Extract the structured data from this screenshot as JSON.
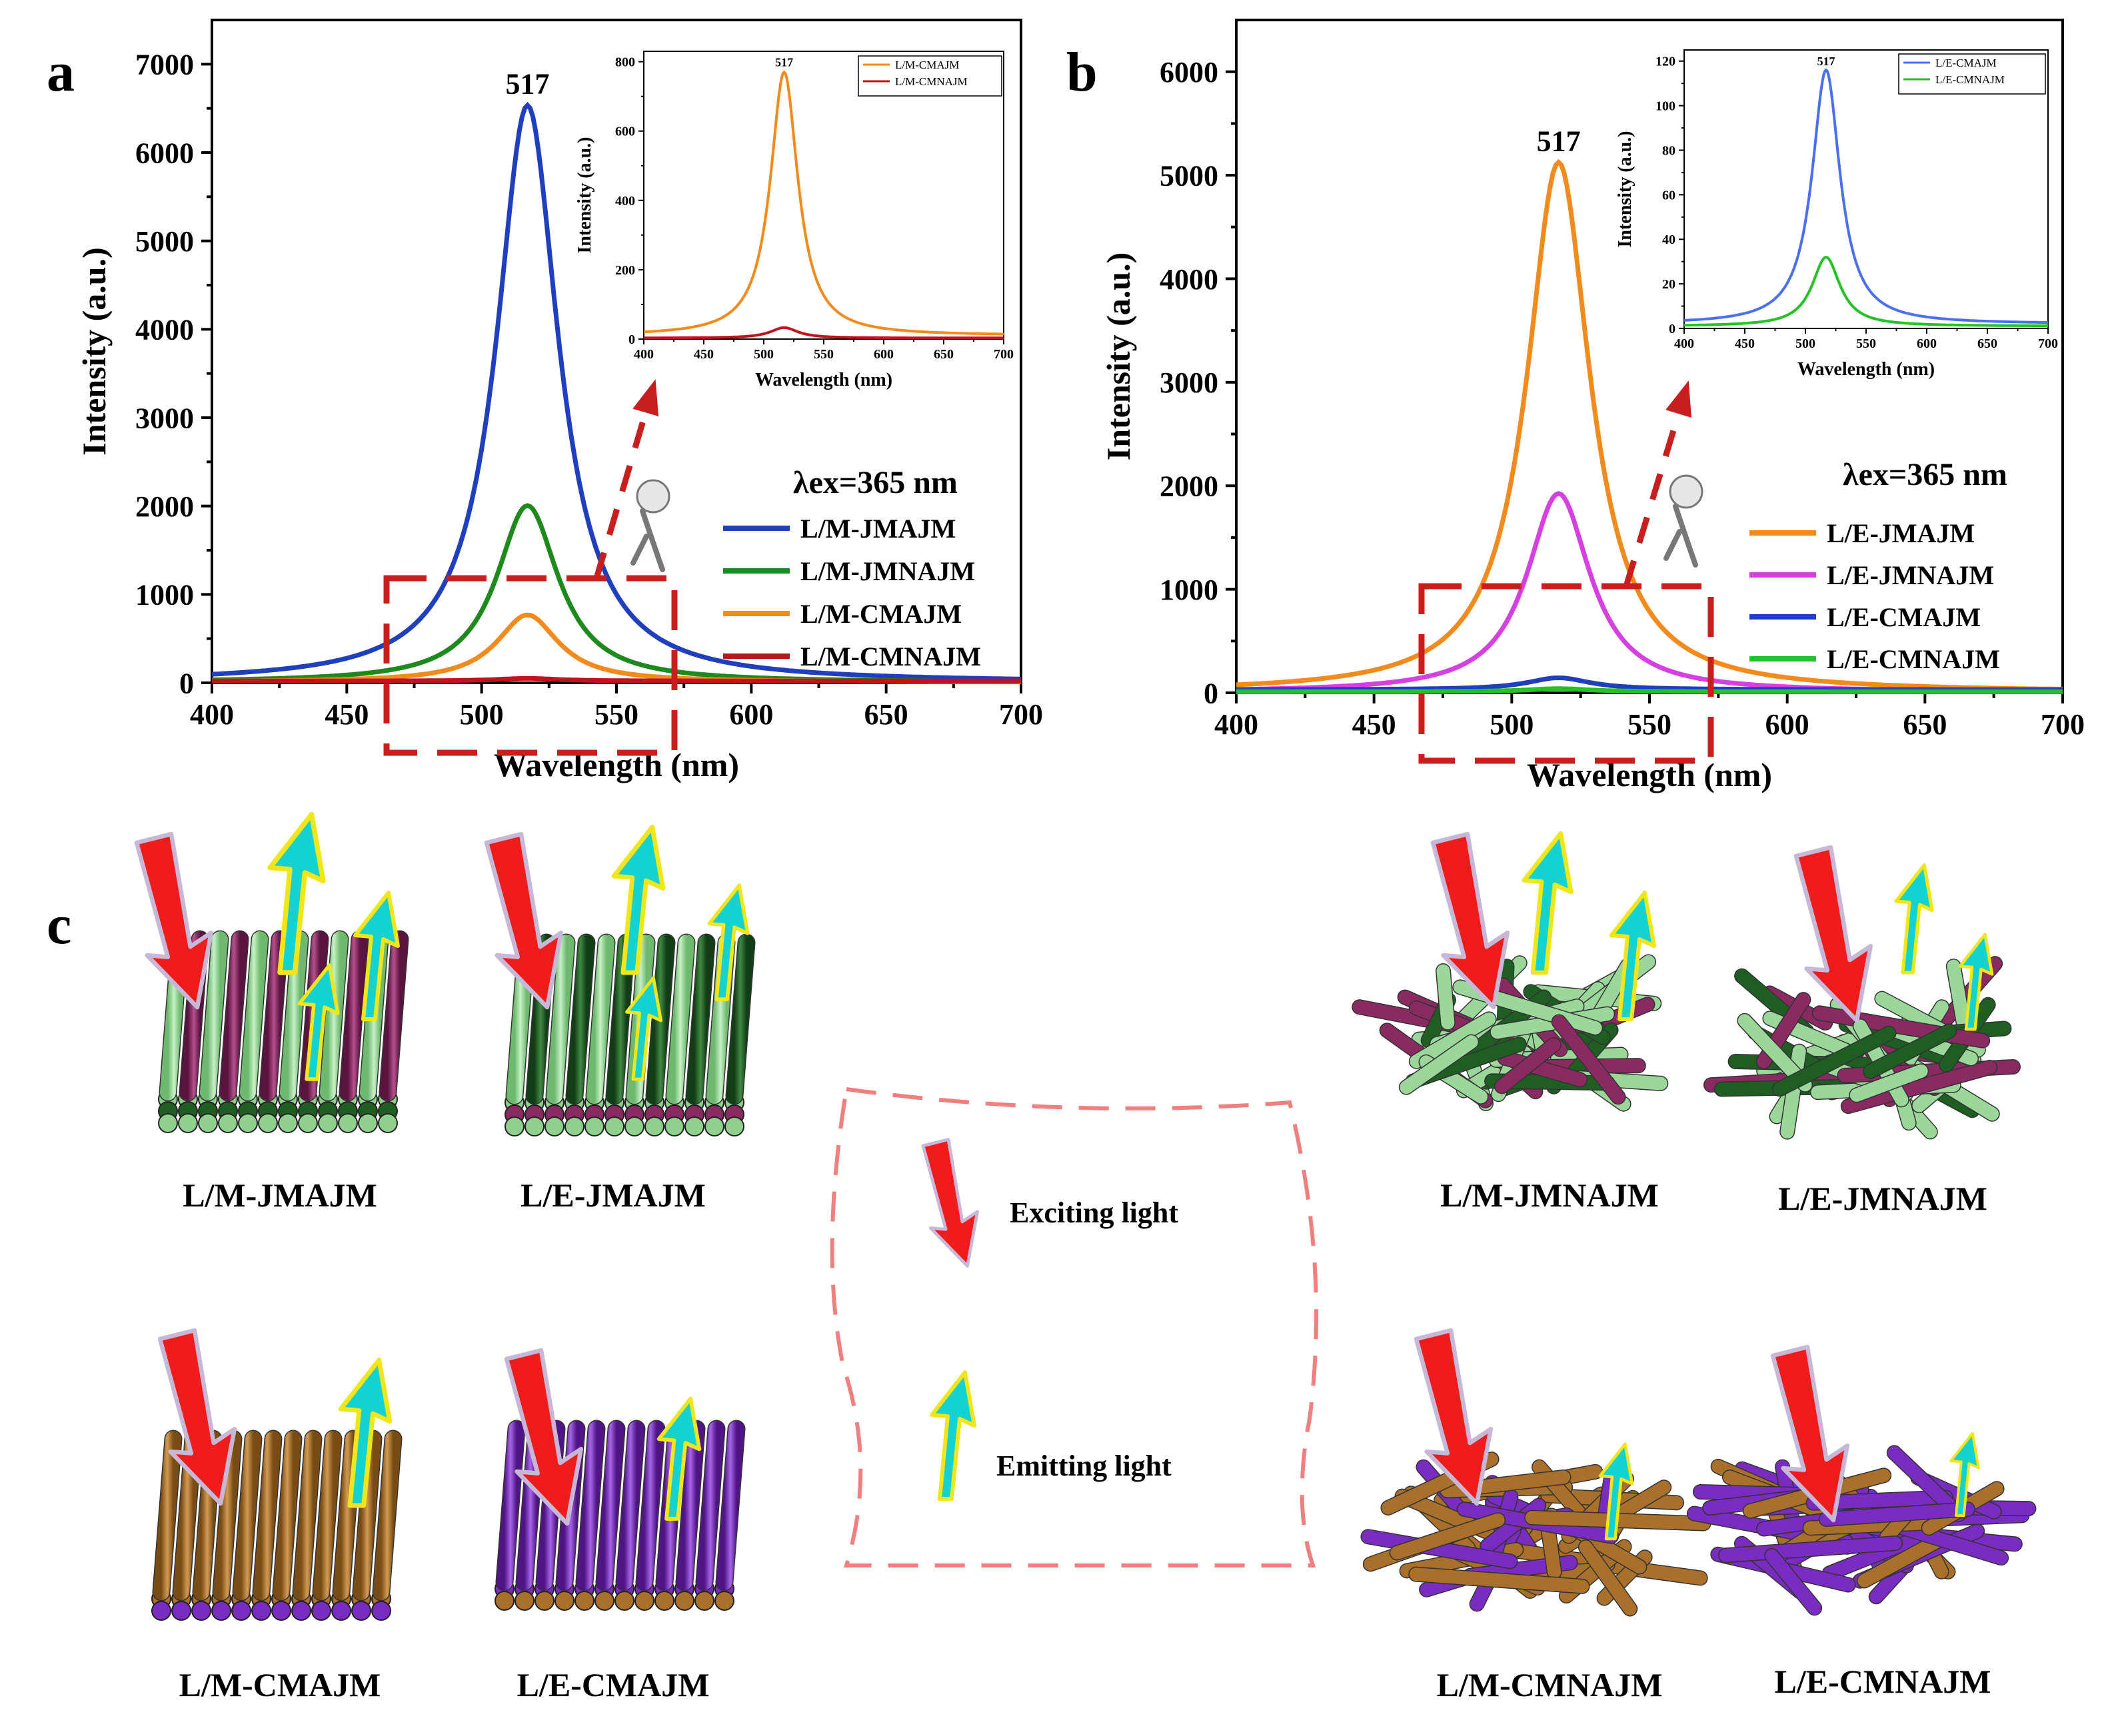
{
  "panels": {
    "a": {
      "letter": "a",
      "peak_label": "517",
      "excitation_label": "λex=365 nm",
      "inset_peak_label": "517"
    },
    "b": {
      "letter": "b",
      "peak_label": "517",
      "excitation_label": "λex=365 nm",
      "inset_peak_label": "517"
    },
    "c": {
      "letter": "c"
    }
  },
  "chart_data": [
    {
      "id": "a-main",
      "type": "line",
      "xlabel": "Wavelength (nm)",
      "ylabel": "Intensity (a.u.)",
      "xlim": [
        400,
        700
      ],
      "ylim": [
        0,
        7500
      ],
      "xticks": [
        400,
        450,
        500,
        550,
        600,
        650,
        700
      ],
      "yticks": [
        0,
        1000,
        2000,
        3000,
        4000,
        5000,
        6000,
        7000
      ],
      "peak_x": 517,
      "series": [
        {
          "name": "L/M-JMAJM",
          "peak": 6530,
          "color": "#1f3fbf",
          "baseline": 5
        },
        {
          "name": "L/M-JMNAJM",
          "peak": 2000,
          "color": "#1e8a1e",
          "baseline": 5
        },
        {
          "name": "L/M-CMAJM",
          "peak": 760,
          "color": "#f28a1c",
          "baseline": 8
        },
        {
          "name": "L/M-CMNAJM",
          "peak": 30,
          "color": "#c0141c",
          "baseline": 20
        }
      ]
    },
    {
      "id": "a-inset",
      "type": "line",
      "xlabel": "Wavelength (nm)",
      "ylabel": "Intensity (a.u.)",
      "xlim": [
        400,
        700
      ],
      "ylim": [
        0,
        830
      ],
      "xticks": [
        400,
        450,
        500,
        550,
        600,
        650,
        700
      ],
      "yticks": [
        0,
        200,
        400,
        600,
        800
      ],
      "peak_x": 517,
      "series": [
        {
          "name": "L/M-CMAJM",
          "peak": 760,
          "color": "#f28a1c",
          "baseline": 10
        },
        {
          "name": "L/M-CMNAJM",
          "peak": 30,
          "color": "#c0141c",
          "baseline": 3
        }
      ]
    },
    {
      "id": "b-main",
      "type": "line",
      "xlabel": "Wavelength (nm)",
      "ylabel": "Intensity (a.u.)",
      "xlim": [
        400,
        700
      ],
      "ylim": [
        0,
        6500
      ],
      "xticks": [
        400,
        450,
        500,
        550,
        600,
        650,
        700
      ],
      "yticks": [
        0,
        1000,
        2000,
        3000,
        4000,
        5000,
        6000
      ],
      "peak_x": 517,
      "series": [
        {
          "name": "L/E-JMAJM",
          "peak": 5120,
          "color": "#f28a1c",
          "baseline": 5
        },
        {
          "name": "L/E-JMNAJM",
          "peak": 1920,
          "color": "#d63fe0",
          "baseline": 5
        },
        {
          "name": "L/E-CMAJM",
          "peak": 115,
          "color": "#1f3fbf",
          "baseline": 30
        },
        {
          "name": "L/E-CMNAJM",
          "peak": 30,
          "color": "#22c322",
          "baseline": 10
        }
      ]
    },
    {
      "id": "b-inset",
      "type": "line",
      "xlabel": "Wavelength (nm)",
      "ylabel": "Intensity (a.u.)",
      "xlim": [
        400,
        700
      ],
      "ylim": [
        0,
        125
      ],
      "xticks": [
        400,
        450,
        500,
        550,
        600,
        650,
        700
      ],
      "yticks": [
        0,
        20,
        40,
        60,
        80,
        100,
        120
      ],
      "peak_x": 517,
      "series": [
        {
          "name": "L/E-CMAJM",
          "peak": 114,
          "color": "#4a6ff0",
          "baseline": 2
        },
        {
          "name": "L/E-CMNAJM",
          "peak": 31,
          "color": "#22c322",
          "baseline": 1
        }
      ]
    }
  ],
  "schematic": {
    "labels": {
      "lm_jmajm": "L/M-JMAJM",
      "le_jmajm": "L/E-JMAJM",
      "lm_cmajm": "L/M-CMAJM",
      "le_cmajm": "L/E-CMAJM",
      "lm_jmnajm": "L/M-JMNAJM",
      "le_jmnajm": "L/E-JMNAJM",
      "lm_cmnajm": "L/M-CMNAJM",
      "le_cmnajm": "L/E-CMNAJM"
    },
    "legend": {
      "exciting": "Exciting light",
      "emitting": "Emitting light"
    },
    "colors": {
      "light_green": "#9bd79b",
      "dark_green": "#1f5e23",
      "magenta": "#8a2a62",
      "brown": "#a8702a",
      "purple": "#7a2bc0",
      "excite_arrow": "#f01c1c",
      "emit_arrow": "#14d2d2",
      "dash_box": "#c81e1e",
      "legend_box": "#f08080"
    }
  }
}
